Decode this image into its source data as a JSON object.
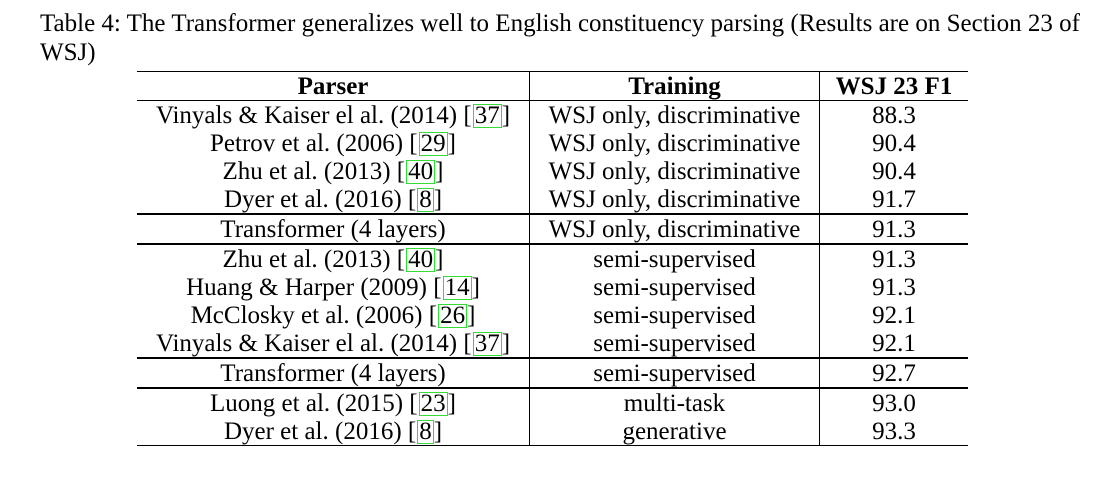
{
  "caption": "Table 4: The Transformer generalizes well to English constituency parsing (Results are on Section 23 of WSJ)",
  "table": {
    "headers": {
      "parser": "Parser",
      "training": "Training",
      "f1": "WSJ 23 F1"
    },
    "rows": [
      {
        "parser": "Vinyals & Kaiser el al. (2014)",
        "cite": "37",
        "training": "WSJ only, discriminative",
        "f1": "88.3"
      },
      {
        "parser": "Petrov et al. (2006)",
        "cite": "29",
        "training": "WSJ only, discriminative",
        "f1": "90.4"
      },
      {
        "parser": "Zhu et al. (2013)",
        "cite": "40",
        "training": "WSJ only, discriminative",
        "f1": "90.4"
      },
      {
        "parser": "Dyer et al. (2016)",
        "cite": "8",
        "training": "WSJ only, discriminative",
        "f1": "91.7"
      },
      {
        "parser": "Transformer (4 layers)",
        "cite": "",
        "training": "WSJ only, discriminative",
        "f1": "91.3"
      },
      {
        "parser": "Zhu et al. (2013)",
        "cite": "40",
        "training": "semi-supervised",
        "f1": "91.3"
      },
      {
        "parser": "Huang & Harper (2009)",
        "cite": "14",
        "training": "semi-supervised",
        "f1": "91.3"
      },
      {
        "parser": "McClosky et al. (2006)",
        "cite": "26",
        "training": "semi-supervised",
        "f1": "92.1"
      },
      {
        "parser": "Vinyals & Kaiser el al. (2014)",
        "cite": "37",
        "training": "semi-supervised",
        "f1": "92.1"
      },
      {
        "parser": "Transformer (4 layers)",
        "cite": "",
        "training": "semi-supervised",
        "f1": "92.7"
      },
      {
        "parser": "Luong et al. (2015)",
        "cite": "23",
        "training": "multi-task",
        "f1": "93.0"
      },
      {
        "parser": "Dyer et al. (2016)",
        "cite": "8",
        "training": "generative",
        "f1": "93.3"
      }
    ]
  },
  "colors": {
    "citation_box": "#33dd33"
  }
}
